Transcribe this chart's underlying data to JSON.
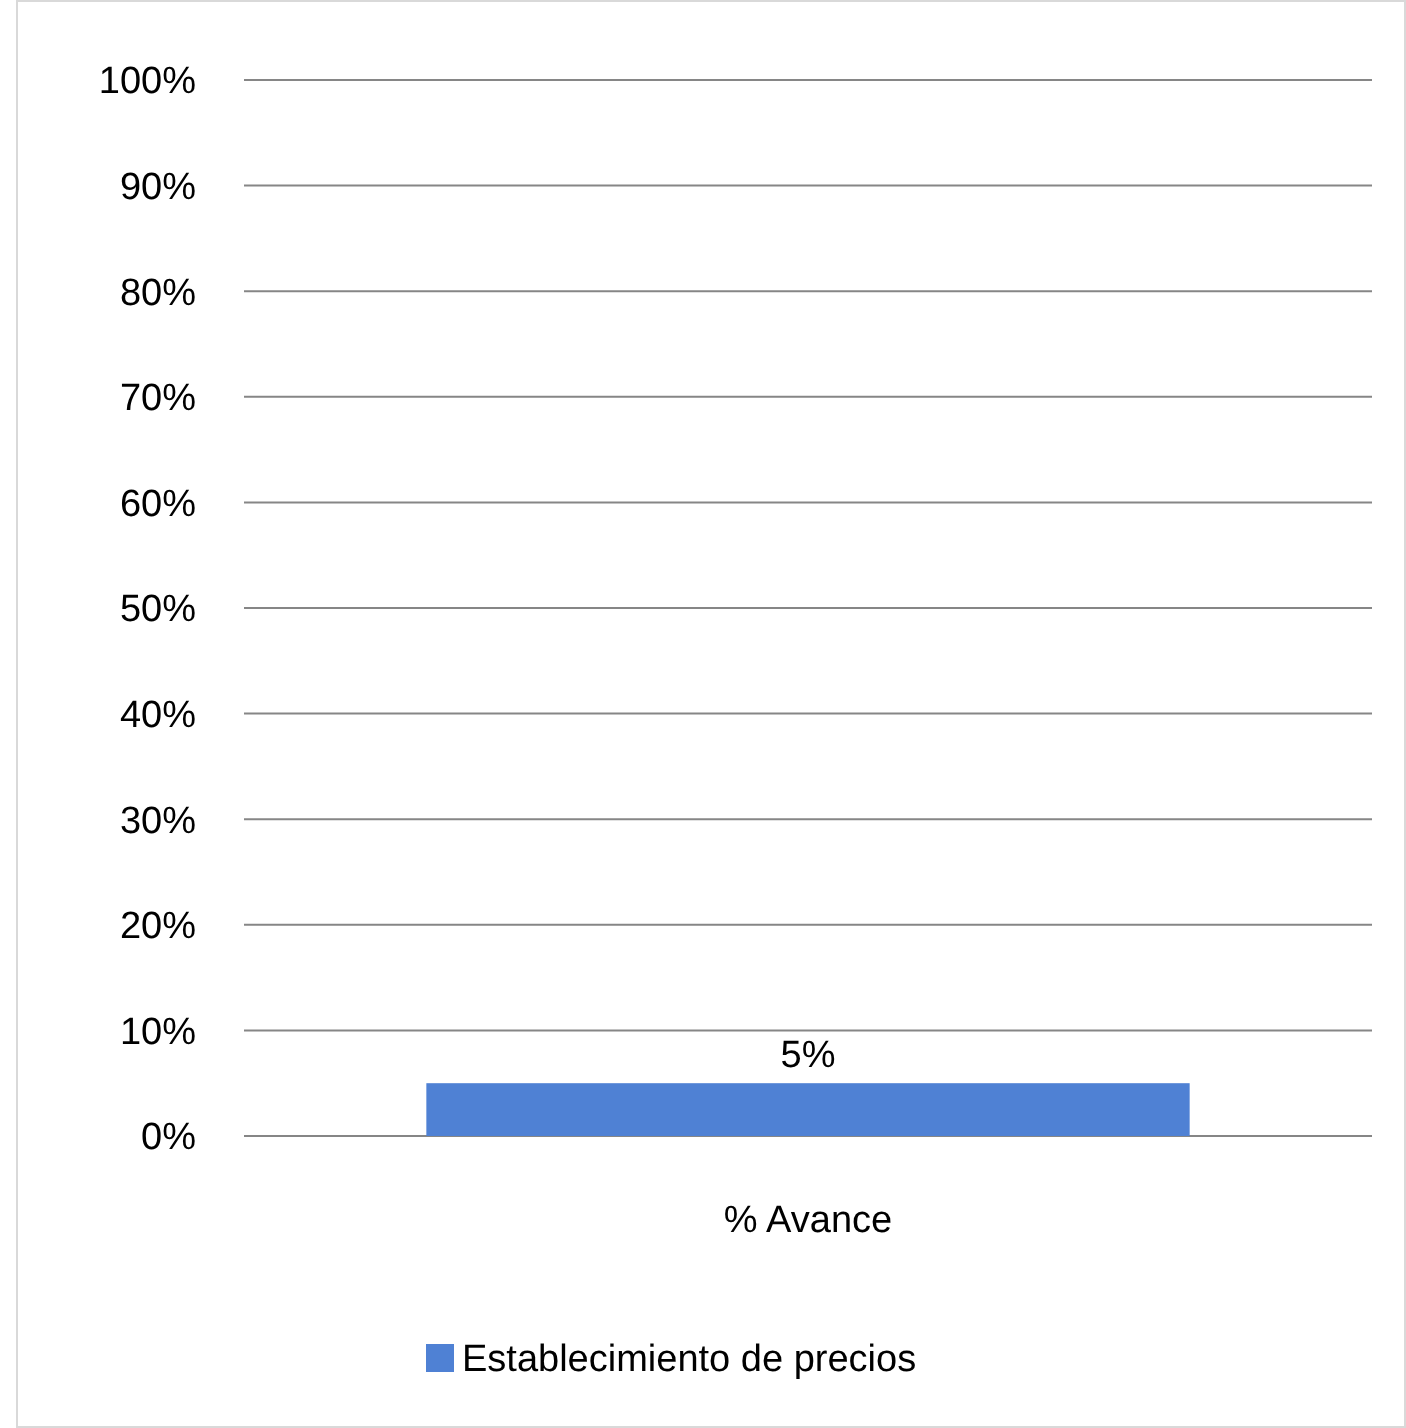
{
  "chart_data": {
    "type": "bar",
    "categories": [
      "% Avance"
    ],
    "series": [
      {
        "name": "Establecimiento de precios",
        "color": "#4f81d4",
        "values": [
          5
        ]
      }
    ],
    "value_labels": [
      "5%"
    ],
    "ylim": [
      0,
      100
    ],
    "yticks": [
      {
        "value": 0,
        "label": "0%"
      },
      {
        "value": 10,
        "label": "10%"
      },
      {
        "value": 20,
        "label": "20%"
      },
      {
        "value": 30,
        "label": "30%"
      },
      {
        "value": 40,
        "label": "40%"
      },
      {
        "value": 50,
        "label": "50%"
      },
      {
        "value": 60,
        "label": "60%"
      },
      {
        "value": 70,
        "label": "70%"
      },
      {
        "value": 80,
        "label": "80%"
      },
      {
        "value": 90,
        "label": "90%"
      },
      {
        "value": 100,
        "label": "100%"
      }
    ],
    "grid": "y",
    "legend": "bottom"
  }
}
